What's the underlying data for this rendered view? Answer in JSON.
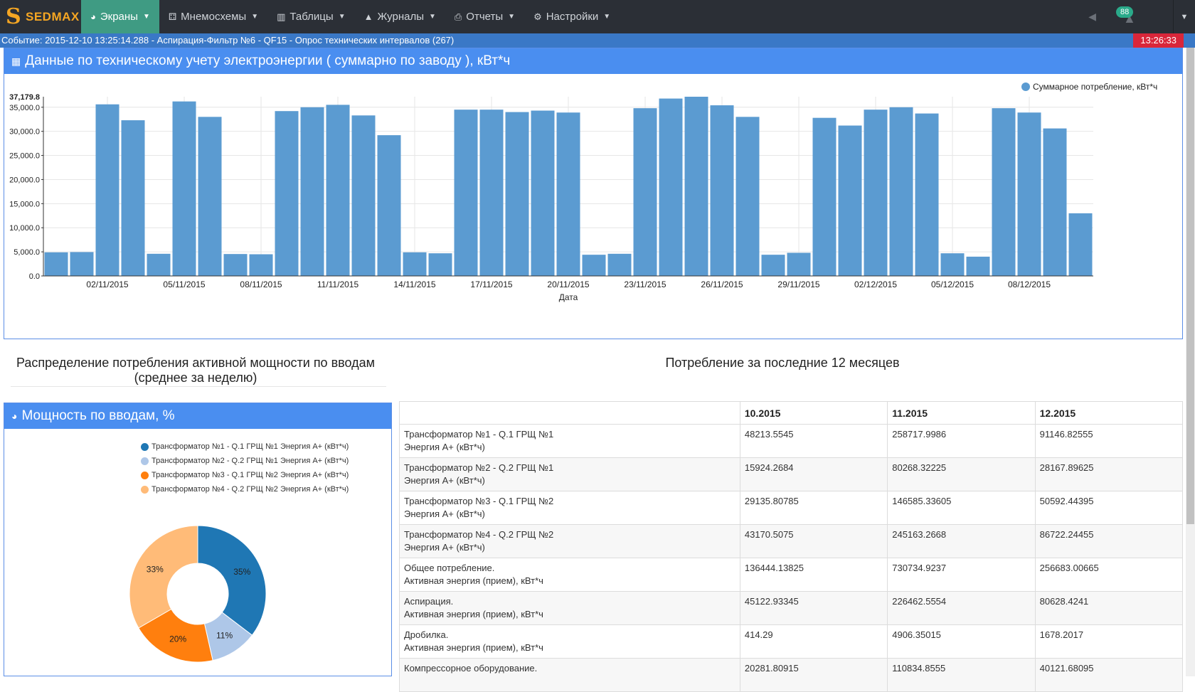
{
  "navbar": {
    "logo": "SEDMAX",
    "items": [
      {
        "label": "Экраны",
        "icon": "dashboard-icon",
        "glyph": "◕",
        "active": true
      },
      {
        "label": "Мнемосхемы",
        "icon": "sitemap-icon",
        "glyph": "⚃",
        "active": false
      },
      {
        "label": "Таблицы",
        "icon": "bar-chart-icon",
        "glyph": "▥",
        "active": false
      },
      {
        "label": "Журналы",
        "icon": "warning-icon",
        "glyph": "▲",
        "active": false
      },
      {
        "label": "Отчеты",
        "icon": "printer-icon",
        "glyph": "⎙",
        "active": false
      },
      {
        "label": "Настройки",
        "icon": "gears-icon",
        "glyph": "⚙",
        "active": false
      }
    ],
    "alarm_count": "88"
  },
  "eventbar": {
    "text": "Событие:  2015-12-10 13:25:14.288 - Аспирация-Фильтр №6 - QF15 - Опрос технических интервалов (267)",
    "clock": "13:26:33"
  },
  "panel_energy": {
    "title": "Данные по техническому учету электроэнергии ( суммарно по заводу ), кВт*ч"
  },
  "section_left_title": "Распределение потребления активной мощности по вводам (среднее за неделю)",
  "section_right_title": "Потребление за последние 12 месяцев",
  "panel_power": {
    "title": "Мощность по вводам, %"
  },
  "chart_data": [
    {
      "type": "bar",
      "xlabel": "Дата",
      "ylabel": "",
      "ylim": [
        0,
        37179.8
      ],
      "max_label": "37,179.8",
      "yticks": [
        "0.0",
        "5,000.0",
        "10,000.0",
        "15,000.0",
        "20,000.0",
        "25,000.0",
        "30,000.0",
        "35,000.0"
      ],
      "ytick_values": [
        0,
        5000,
        10000,
        15000,
        20000,
        25000,
        30000,
        35000
      ],
      "xtick_labels": [
        "02/11/2015",
        "05/11/2015",
        "08/11/2015",
        "11/11/2015",
        "14/11/2015",
        "17/11/2015",
        "20/11/2015",
        "23/11/2015",
        "26/11/2015",
        "29/11/2015",
        "02/12/2015",
        "05/12/2015",
        "08/12/2015"
      ],
      "xtick_indices": [
        2,
        5,
        8,
        11,
        14,
        17,
        20,
        23,
        26,
        29,
        32,
        35,
        38
      ],
      "categories": [
        "31/10/2015",
        "01/11/2015",
        "02/11/2015",
        "03/11/2015",
        "04/11/2015",
        "05/11/2015",
        "06/11/2015",
        "07/11/2015",
        "08/11/2015",
        "09/11/2015",
        "10/11/2015",
        "11/11/2015",
        "12/11/2015",
        "13/11/2015",
        "14/11/2015",
        "15/11/2015",
        "16/11/2015",
        "17/11/2015",
        "18/11/2015",
        "19/11/2015",
        "20/11/2015",
        "21/11/2015",
        "22/11/2015",
        "23/11/2015",
        "24/11/2015",
        "25/11/2015",
        "26/11/2015",
        "27/11/2015",
        "28/11/2015",
        "29/11/2015",
        "30/11/2015",
        "01/12/2015",
        "02/12/2015",
        "03/12/2015",
        "04/12/2015",
        "05/12/2015",
        "06/12/2015",
        "07/12/2015",
        "08/12/2015",
        "09/12/2015",
        "10/12/2015"
      ],
      "series": [
        {
          "name": "Суммарное потребление, кВт*ч",
          "color": "#5b9bd1",
          "values": [
            4900,
            4950,
            35600,
            32300,
            4600,
            36200,
            33000,
            4550,
            4500,
            34200,
            35000,
            35500,
            33300,
            29200,
            4900,
            4700,
            34500,
            34500,
            34000,
            34300,
            33900,
            4400,
            4600,
            34800,
            36800,
            37179.8,
            35400,
            33000,
            4400,
            4800,
            32800,
            31200,
            34500,
            35000,
            33700,
            4700,
            4000,
            34800,
            33900,
            30600,
            13000
          ]
        }
      ]
    },
    {
      "type": "pie",
      "title": "",
      "series": [
        {
          "name": "Трансформатор №1 - Q.1 ГРЩ №1 Энергия А+ (кВт*ч)",
          "value": 35,
          "label": "35%",
          "color": "#1f77b4"
        },
        {
          "name": "Трансформатор №2 - Q.2 ГРЩ №1 Энергия А+ (кВт*ч)",
          "value": 11,
          "label": "11%",
          "color": "#aec7e8"
        },
        {
          "name": "Трансформатор №3 - Q.1 ГРЩ №2 Энергия А+ (кВт*ч)",
          "value": 20,
          "label": "20%",
          "color": "#ff7f0e"
        },
        {
          "name": "Трансформатор №4 - Q.2 ГРЩ №2 Энергия А+ (кВт*ч)",
          "value": 33,
          "label": "33%",
          "color": "#ffbb78"
        }
      ]
    }
  ],
  "table": {
    "headers": [
      "",
      "10.2015",
      "11.2015",
      "12.2015"
    ],
    "rows": [
      {
        "name1": "Трансформатор №1 - Q.1 ГРЩ №1",
        "name2": "Энергия А+ (кВт*ч)",
        "v": [
          "48213.5545",
          "258717.9986",
          "91146.82555"
        ]
      },
      {
        "name1": "Трансформатор №2 - Q.2 ГРЩ №1",
        "name2": "Энергия А+ (кВт*ч)",
        "v": [
          "15924.2684",
          "80268.32225",
          "28167.89625"
        ]
      },
      {
        "name1": "Трансформатор №3 - Q.1 ГРЩ №2",
        "name2": "Энергия А+ (кВт*ч)",
        "v": [
          "29135.80785",
          "146585.33605",
          "50592.44395"
        ]
      },
      {
        "name1": "Трансформатор №4 - Q.2 ГРЩ №2",
        "name2": "Энергия А+ (кВт*ч)",
        "v": [
          "43170.5075",
          "245163.2668",
          "86722.24455"
        ]
      },
      {
        "name1": "Общее потребление.",
        "name2": "Активная энергия (прием), кВт*ч",
        "v": [
          "136444.13825",
          "730734.9237",
          "256683.00665"
        ]
      },
      {
        "name1": "Аспирация.",
        "name2": "Активная энергия (прием), кВт*ч",
        "v": [
          "45122.93345",
          "226462.5554",
          "80628.4241"
        ]
      },
      {
        "name1": "Дробилка.",
        "name2": "Активная энергия (прием), кВт*ч",
        "v": [
          "414.29",
          "4906.35015",
          "1678.2017"
        ]
      },
      {
        "name1": "Компрессорное оборудование.",
        "name2": "",
        "v": [
          "20281.80915",
          "110834.8555",
          "40121.68095"
        ]
      }
    ]
  }
}
